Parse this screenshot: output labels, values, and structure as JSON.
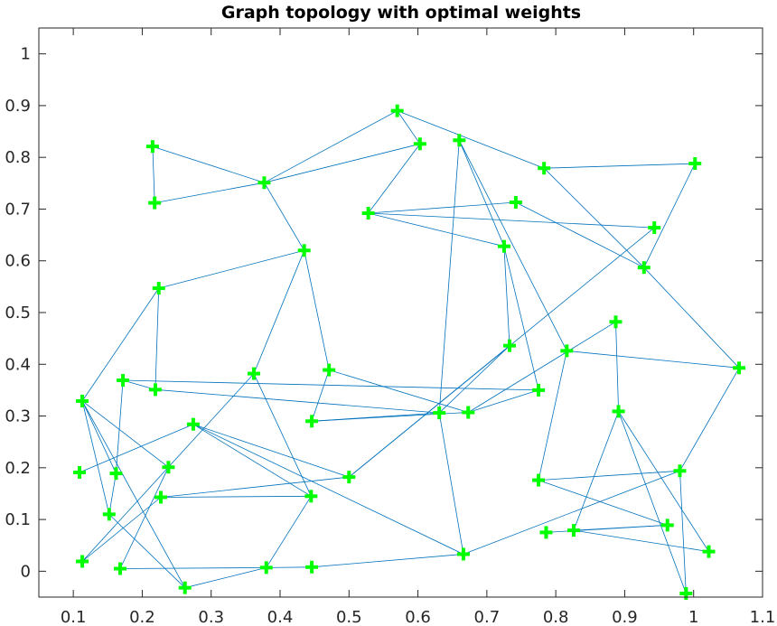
{
  "chart_data": {
    "type": "scatter",
    "title": "Graph topology with optimal weights",
    "xlabel": "",
    "ylabel": "",
    "xlim": [
      0.05,
      1.1
    ],
    "ylim": [
      -0.05,
      1.05
    ],
    "xticks": [
      0.1,
      0.2,
      0.3,
      0.4,
      0.5,
      0.6,
      0.7,
      0.8,
      0.9,
      1,
      1.1
    ],
    "xtick_labels": [
      "0.1",
      "0.2",
      "0.3",
      "0.4",
      "0.5",
      "0.6",
      "0.7",
      "0.8",
      "0.9",
      "1",
      "1.1"
    ],
    "yticks": [
      0,
      0.1,
      0.2,
      0.3,
      0.4,
      0.5,
      0.6,
      0.7,
      0.8,
      0.9,
      1
    ],
    "ytick_labels": [
      "0",
      "0.1",
      "0.2",
      "0.3",
      "0.4",
      "0.5",
      "0.6",
      "0.7",
      "0.8",
      "0.9",
      "1"
    ],
    "grid": false,
    "colors": {
      "nodes": "#00ff00",
      "edges": "#0072BD",
      "axes": "#262626"
    },
    "nodes": [
      [
        0.57,
        0.89
      ],
      [
        0.603,
        0.826
      ],
      [
        0.66,
        0.833
      ],
      [
        0.215,
        0.821
      ],
      [
        0.783,
        0.779
      ],
      [
        1.002,
        0.788
      ],
      [
        0.377,
        0.751
      ],
      [
        0.218,
        0.712
      ],
      [
        0.528,
        0.692
      ],
      [
        0.742,
        0.713
      ],
      [
        0.943,
        0.664
      ],
      [
        0.725,
        0.628
      ],
      [
        0.435,
        0.62
      ],
      [
        0.928,
        0.587
      ],
      [
        0.224,
        0.547
      ],
      [
        0.887,
        0.482
      ],
      [
        0.733,
        0.436
      ],
      [
        0.816,
        0.426
      ],
      [
        1.066,
        0.393
      ],
      [
        0.471,
        0.389
      ],
      [
        0.362,
        0.382
      ],
      [
        0.172,
        0.369
      ],
      [
        0.219,
        0.351
      ],
      [
        0.113,
        0.329
      ],
      [
        0.775,
        0.35
      ],
      [
        0.631,
        0.306
      ],
      [
        0.673,
        0.307
      ],
      [
        0.446,
        0.29
      ],
      [
        0.891,
        0.309
      ],
      [
        0.274,
        0.284
      ],
      [
        0.109,
        0.191
      ],
      [
        0.162,
        0.189
      ],
      [
        0.238,
        0.201
      ],
      [
        0.5,
        0.182
      ],
      [
        0.775,
        0.176
      ],
      [
        0.98,
        0.194
      ],
      [
        0.227,
        0.143
      ],
      [
        0.445,
        0.145
      ],
      [
        0.152,
        0.11
      ],
      [
        0.962,
        0.089
      ],
      [
        0.786,
        0.075
      ],
      [
        0.826,
        0.079
      ],
      [
        0.113,
        0.019
      ],
      [
        0.168,
        0.005
      ],
      [
        0.38,
        0.007
      ],
      [
        0.446,
        0.008
      ],
      [
        0.666,
        0.033
      ],
      [
        1.022,
        0.038
      ],
      [
        0.262,
        -0.032
      ],
      [
        0.989,
        -0.043
      ]
    ],
    "edges": [
      [
        0,
        6
      ],
      [
        0,
        4
      ],
      [
        1,
        6
      ],
      [
        1,
        8
      ],
      [
        2,
        11
      ],
      [
        2,
        17
      ],
      [
        2,
        25
      ],
      [
        3,
        6
      ],
      [
        3,
        7
      ],
      [
        6,
        7
      ],
      [
        6,
        12
      ],
      [
        4,
        5
      ],
      [
        4,
        13
      ],
      [
        5,
        13
      ],
      [
        8,
        9
      ],
      [
        8,
        10
      ],
      [
        9,
        13
      ],
      [
        11,
        8
      ],
      [
        11,
        16
      ],
      [
        11,
        24
      ],
      [
        10,
        33
      ],
      [
        12,
        14
      ],
      [
        12,
        19
      ],
      [
        12,
        20
      ],
      [
        14,
        23
      ],
      [
        14,
        22
      ],
      [
        19,
        27
      ],
      [
        19,
        26
      ],
      [
        20,
        37
      ],
      [
        20,
        42
      ],
      [
        21,
        24
      ],
      [
        22,
        25
      ],
      [
        21,
        31
      ],
      [
        23,
        31
      ],
      [
        23,
        48
      ],
      [
        23,
        32
      ],
      [
        23,
        38
      ],
      [
        27,
        26
      ],
      [
        27,
        25
      ],
      [
        26,
        15
      ],
      [
        13,
        18
      ],
      [
        15,
        28
      ],
      [
        17,
        18
      ],
      [
        17,
        34
      ],
      [
        16,
        33
      ],
      [
        25,
        46
      ],
      [
        28,
        41
      ],
      [
        28,
        49
      ],
      [
        28,
        47
      ],
      [
        34,
        35
      ],
      [
        35,
        46
      ],
      [
        35,
        49
      ],
      [
        35,
        18
      ],
      [
        40,
        39
      ],
      [
        39,
        41
      ],
      [
        39,
        34
      ],
      [
        41,
        47
      ],
      [
        46,
        45
      ],
      [
        45,
        44
      ],
      [
        44,
        43
      ],
      [
        43,
        32
      ],
      [
        36,
        33
      ],
      [
        36,
        37
      ],
      [
        29,
        37
      ],
      [
        29,
        46
      ],
      [
        29,
        33
      ],
      [
        29,
        30
      ],
      [
        37,
        44
      ],
      [
        42,
        36
      ],
      [
        31,
        38
      ],
      [
        38,
        48
      ],
      [
        48,
        44
      ],
      [
        22,
        21
      ],
      [
        24,
        26
      ],
      [
        16,
        25
      ],
      [
        1,
        0
      ]
    ]
  }
}
